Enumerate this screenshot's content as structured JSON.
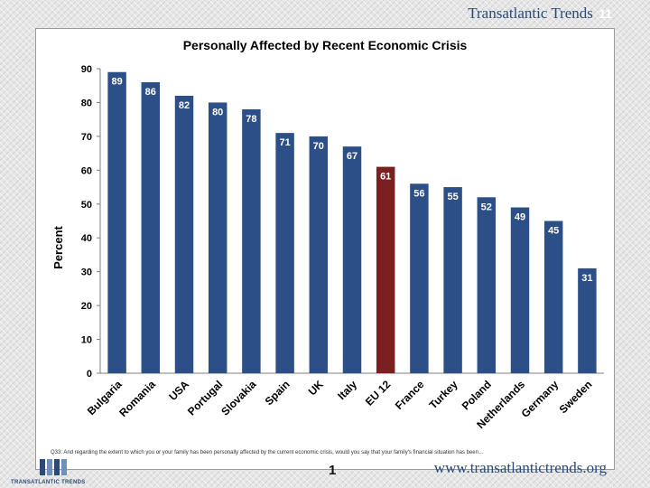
{
  "header": {
    "brand": "Transatlantic Trends",
    "page_badge": "11"
  },
  "footer": {
    "question": "Q33: And regarding the extent to which you or your family has been personally affected by the current economic crisis, would you say that your family's financial situation has been…",
    "page_number": "1",
    "url": "www.transatlantictrends.org",
    "logo_text": "TRANSATLANTIC TRENDS"
  },
  "colors": {
    "bar": "#2d4f88",
    "highlight": "#7a2020",
    "label": "#ffffff"
  },
  "chart_data": {
    "type": "bar",
    "title": "Personally Affected by Recent Economic Crisis",
    "xlabel": "",
    "ylabel": "Percent",
    "ylim": [
      0,
      90
    ],
    "yticks": [
      0,
      10,
      20,
      30,
      40,
      50,
      60,
      70,
      80,
      90
    ],
    "grid": false,
    "categories": [
      "Bulgaria",
      "Romania",
      "USA",
      "Portugal",
      "Slovakia",
      "Spain",
      "UK",
      "Italy",
      "EU 12",
      "France",
      "Turkey",
      "Poland",
      "Netherlands",
      "Germany",
      "Sweden"
    ],
    "values": [
      89,
      86,
      82,
      80,
      78,
      71,
      70,
      67,
      61,
      56,
      55,
      52,
      49,
      45,
      31
    ],
    "highlight_category": "EU 12"
  }
}
